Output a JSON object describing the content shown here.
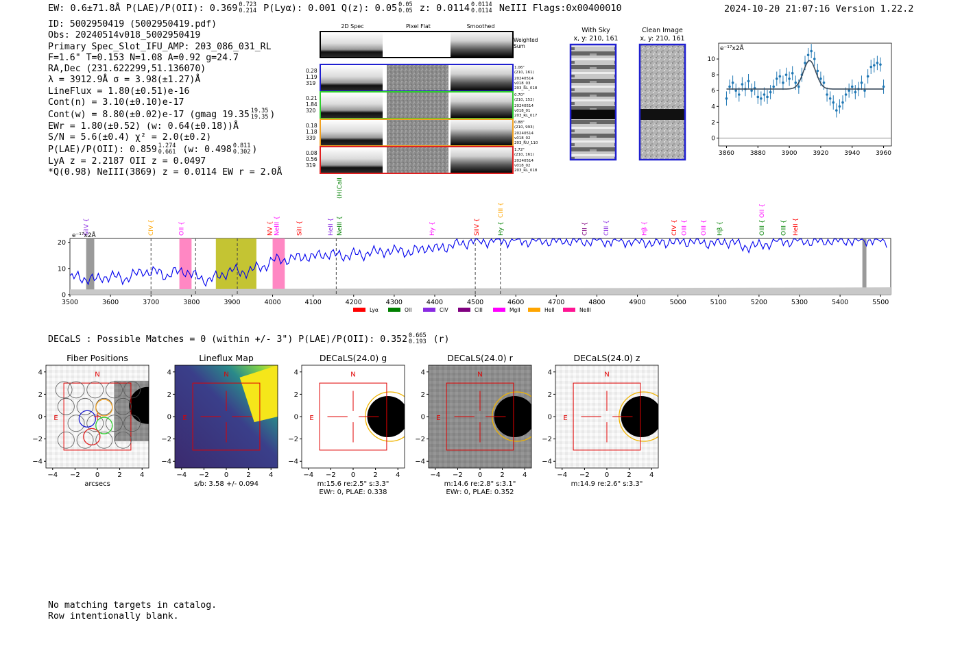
{
  "header": {
    "left": "EW: 0.6±71.8Å  P(LAE)/P(OII): 0.369",
    "plae_hi": "0.723",
    "plae_lo": "0.214",
    "plya": "P(Lyα): 0.001",
    "qz": "Q(z): 0.05",
    "qz_hi": "0.05",
    "qz_lo": "0.05",
    "z": "z: 0.0114",
    "z_hi": "0.0114",
    "z_lo": "0.0114",
    "tail": "NeIII  Flags:0x00400010",
    "datetime": "2024-10-20 21:07:16  Version 1.22.2"
  },
  "info": {
    "id": "ID: 5002950419 (5002950419.pdf)",
    "obs": "Obs: 20240514v018_5002950419",
    "primary": "Primary Spec_Slot_IFU_AMP: 203_086_031_RL",
    "fiber": "F=1.6\"  T=0.153  N=1.08  A=0.92  g=24.7",
    "radec": "RA,Dec (231.622299,51.136070)",
    "lambda": "λ = 3912.9Å  σ = 3.98(±1.27)Å",
    "lineflux": "LineFlux = 1.80(±0.51)e-16",
    "contn": "Cont(n) = 3.10(±0.10)e-17",
    "contw": "Cont(w) = 8.80(±0.02)e-17 (gmag 19.35",
    "contw_hi": "19.35",
    "contw_lo": "19.35",
    "contw_close": ")",
    "ewr": "EWr = 1.80(±0.52) (w: 0.64(±0.18))Å",
    "sn": "S/N = 5.6(±0.4)  χ² = 2.0(±0.2)",
    "plae": "P(LAE)/P(OII): 0.859",
    "plae_hi": "1.274",
    "plae_lo": "0.661",
    "plae_w": "(w: 0.498",
    "plae_w_hi": "0.811",
    "plae_w_lo": "0.302",
    "plae_close": ")",
    "lya": "LyA z = 2.2187  OII z = 0.0497",
    "q": "*Q(0.98) NeIII(3869) z = 0.0114  EW r = 2.0Å"
  },
  "cutouts": {
    "col_titles": [
      "2D Spec",
      "Pixel Flat",
      "Smoothed"
    ],
    "weighted_label": [
      "Weighted",
      "Sum"
    ],
    "rows": [
      {
        "left": [
          "0.28",
          "1.19",
          "319"
        ],
        "right": [
          "1.06\"",
          "(210, 161)",
          "20240514",
          "v018_03",
          "203_RL_018"
        ],
        "color": "#1f1fd0"
      },
      {
        "left": [
          "0.21",
          "1.84",
          "320"
        ],
        "right": [
          "0.70\"",
          "(210, 152)",
          "20240514",
          "v018_01",
          "203_RL_017"
        ],
        "color": "#2ecc2e"
      },
      {
        "left": [
          "0.18",
          "1.18",
          "339"
        ],
        "right": [
          "0.88\"",
          "(210, 993)",
          "20240514",
          "v018_02",
          "203_RU_110"
        ],
        "color": "#f0a020"
      },
      {
        "left": [
          "0.08",
          "0.56",
          "319"
        ],
        "right": [
          "1.72\"",
          "(210, 161)",
          "20240514",
          "v018_02",
          "203_RL_018"
        ],
        "color": "#e02020"
      }
    ],
    "sky_title": [
      "With Sky",
      "x, y: 210, 161"
    ],
    "clean_title": [
      "Clean Image",
      "x, y: 210, 161"
    ]
  },
  "zoom_chart": {
    "unit": "e⁻¹⁷x2Å"
  },
  "spectrum_unit": "e⁻¹⁷x2Å",
  "legend": [
    {
      "name": "Lyα",
      "color": "#ff0000"
    },
    {
      "name": "OII",
      "color": "#008000"
    },
    {
      "name": "CIV",
      "color": "#8a2be2"
    },
    {
      "name": "CIII",
      "color": "#800080"
    },
    {
      "name": "MgII",
      "color": "#ff00ff"
    },
    {
      "name": "HeII",
      "color": "#ffa500"
    },
    {
      "name": "NeIII",
      "color": "#ff1493"
    }
  ],
  "line_labels": [
    {
      "text": "SiIV",
      "w": 3540,
      "color": "#8a2be2",
      "row": 0
    },
    {
      "text": "CIV",
      "w": 3700,
      "color": "#ffa500",
      "row": 0
    },
    {
      "text": "OII",
      "w": 3775,
      "color": "#ff00ff",
      "row": 0
    },
    {
      "text": "NV",
      "w": 3993,
      "color": "#ff0000",
      "row": 0
    },
    {
      "text": "NeIII",
      "w": 4010,
      "color": "#ff00ff",
      "row": 0
    },
    {
      "text": "SiII",
      "w": 4066,
      "color": "#ff0000",
      "row": 0
    },
    {
      "text": "HeII",
      "w": 4143,
      "color": "#8a2be2",
      "row": 0
    },
    {
      "text": "NeIII",
      "w": 4165,
      "color": "#008000",
      "row": 0
    },
    {
      "text": "(H)CaII",
      "w": 4165,
      "color": "#008000",
      "row": 2
    },
    {
      "text": "Hy",
      "w": 4393,
      "color": "#ff00ff",
      "row": 0
    },
    {
      "text": "SiIV",
      "w": 4503,
      "color": "#ff0000",
      "row": 0
    },
    {
      "text": "Hy",
      "w": 4562,
      "color": "#008000",
      "row": 0
    },
    {
      "text": "CIII",
      "w": 4562,
      "color": "#ffa500",
      "row": 1
    },
    {
      "text": "CII",
      "w": 4770,
      "color": "#800080",
      "row": 0
    },
    {
      "text": "CIII",
      "w": 4823,
      "color": "#8a2be2",
      "row": 0
    },
    {
      "text": "Hβ",
      "w": 4917,
      "color": "#ff00ff",
      "row": 0
    },
    {
      "text": "CIV",
      "w": 4990,
      "color": "#ff0000",
      "row": 0
    },
    {
      "text": "OIII",
      "w": 5015,
      "color": "#ff00ff",
      "row": 0
    },
    {
      "text": "OIII",
      "w": 5063,
      "color": "#ff00ff",
      "row": 0
    },
    {
      "text": "Hβ",
      "w": 5103,
      "color": "#008000",
      "row": 0
    },
    {
      "text": "OIII",
      "w": 5207,
      "color": "#008000",
      "row": 0
    },
    {
      "text": "OII",
      "w": 5207,
      "color": "#ff00ff",
      "row": 1
    },
    {
      "text": "OIII",
      "w": 5260,
      "color": "#008000",
      "row": 0
    },
    {
      "text": "HeII",
      "w": 5290,
      "color": "#ff0000",
      "row": 0
    }
  ],
  "decals": {
    "text": "DECaLS : Possible Matches = 0 (within +/- 3\")  P(LAE)/P(OII): 0.352",
    "hi": "0.665",
    "lo": "0.193",
    "tail": "(r)",
    "panels": [
      {
        "title": "Fiber Positions",
        "caption": [
          "arcsecs"
        ]
      },
      {
        "title": "Lineflux Map",
        "caption": [
          "s/b: 3.58 +/- 0.094"
        ]
      },
      {
        "title": "DECaLS(24.0) g",
        "caption": [
          "m:15.6  re:2.5\"  s:3.3\"",
          "EWr: 0, PLAE: 0.338"
        ]
      },
      {
        "title": "DECaLS(24.0) r",
        "caption": [
          "m:14.6  re:2.8\"  s:3.1\"",
          "EWr: 0, PLAE: 0.352"
        ]
      },
      {
        "title": "DECaLS(24.0) z",
        "caption": [
          "m:14.9  re:2.6\"  s:3.3\""
        ]
      }
    ],
    "compass_n": "N",
    "compass_e": "E"
  },
  "footer": [
    "No matching targets in catalog.",
    "Row intentionally blank."
  ],
  "chart_data": [
    {
      "type": "line",
      "title": "",
      "xlabel": "",
      "ylabel": "e⁻¹⁷x2Å",
      "xlim": [
        3855,
        3965
      ],
      "ylim": [
        -1,
        12
      ],
      "xticks": [
        3860,
        3880,
        3900,
        3920,
        3940,
        3960
      ],
      "yticks": [
        0,
        2,
        4,
        6,
        8,
        10
      ],
      "series": [
        {
          "kind": "errorbar",
          "x": [
            3860,
            3862,
            3864,
            3866,
            3868,
            3870,
            3872,
            3874,
            3876,
            3878,
            3880,
            3882,
            3884,
            3886,
            3888,
            3890,
            3892,
            3894,
            3896,
            3898,
            3900,
            3902,
            3904,
            3906,
            3908,
            3910,
            3912,
            3914,
            3916,
            3918,
            3920,
            3922,
            3924,
            3926,
            3928,
            3930,
            3932,
            3934,
            3936,
            3938,
            3940,
            3942,
            3944,
            3946,
            3948,
            3950,
            3952,
            3954,
            3956,
            3958,
            3960
          ],
          "y": [
            5.0,
            6.5,
            7.0,
            6.0,
            5.5,
            6.8,
            6.2,
            7.2,
            6.0,
            6.3,
            5.2,
            5.0,
            5.5,
            5.2,
            5.8,
            6.5,
            7.5,
            7.8,
            7.0,
            8.0,
            7.5,
            8.2,
            7.0,
            6.5,
            8.0,
            9.5,
            10.5,
            11.0,
            10.0,
            8.5,
            7.5,
            7.0,
            5.5,
            5.0,
            4.5,
            3.5,
            4.0,
            4.5,
            5.5,
            6.0,
            6.5,
            5.8,
            6.2,
            7.0,
            6.0,
            7.8,
            9.0,
            9.2,
            9.5,
            9.3,
            6.5
          ],
          "err": 0.9
        },
        {
          "kind": "fit",
          "model": "gaussian",
          "continuum": 6.2,
          "center": 3912.9,
          "sigma": 3.98,
          "amplitude": 3.6
        }
      ]
    },
    {
      "type": "line",
      "title": "",
      "xlabel": "",
      "ylabel": "e⁻¹⁷x2Å",
      "xlim": [
        3500,
        5525
      ],
      "ylim": [
        0,
        21.5
      ],
      "xticks": [
        3500,
        3600,
        3700,
        3800,
        3900,
        4000,
        4100,
        4200,
        4300,
        4400,
        4500,
        4600,
        4700,
        4800,
        4900,
        5000,
        5100,
        5200,
        5300,
        5400,
        5500
      ],
      "yticks": [
        0,
        10,
        20
      ],
      "series": [
        {
          "name": "spectrum",
          "x": [
            3500,
            3520,
            3540,
            3560,
            3580,
            3600,
            3620,
            3640,
            3660,
            3680,
            3700,
            3720,
            3740,
            3760,
            3780,
            3800,
            3820,
            3840,
            3860,
            3880,
            3900,
            3920,
            3940,
            3960,
            3980,
            4000,
            4020,
            4040,
            4060,
            4080,
            4100,
            4120,
            4140,
            4160,
            4180,
            4200,
            4220,
            4240,
            4260,
            4280,
            4300,
            4320,
            4340,
            4360,
            4380,
            4400,
            4420,
            4440,
            4460,
            4480,
            4500,
            4520,
            4540,
            4560,
            4580,
            4600,
            4620,
            4640,
            4660,
            4680,
            4700,
            4720,
            4740,
            4760,
            4780,
            4800,
            4820,
            4840,
            4860,
            4880,
            4900,
            4920,
            4940,
            4960,
            4980,
            5000,
            5020,
            5040,
            5060,
            5080,
            5100,
            5120,
            5140,
            5160,
            5180,
            5200,
            5220,
            5240,
            5260,
            5280,
            5300,
            5320,
            5340,
            5360,
            5380,
            5400,
            5420,
            5440,
            5460,
            5480,
            5500,
            5520
          ],
          "y": [
            6,
            7,
            6,
            5.5,
            7,
            6.5,
            7,
            6,
            7.5,
            9.5,
            8,
            9,
            7,
            8.5,
            9.5,
            7.5,
            6.5,
            5.5,
            6.5,
            8,
            9.5,
            8.5,
            9,
            10,
            11,
            13,
            13.5,
            13.5,
            14,
            15,
            14,
            15.5,
            15.5,
            15,
            15,
            15.5,
            15,
            16.5,
            16,
            17,
            16.5,
            17,
            16,
            17,
            18.5,
            17,
            18.5,
            18.5,
            19.5,
            20,
            20.5,
            20.5,
            20.5,
            21,
            20.5,
            21,
            20.5,
            20.5,
            21,
            20.5,
            20.5,
            21,
            20.5,
            20.5,
            20.5,
            21,
            20.5,
            20.5,
            20.5,
            20.5,
            20,
            20.5,
            19.5,
            20,
            20.5,
            20,
            20.5,
            20.5,
            20,
            20,
            19.5,
            20.5,
            20,
            18,
            19,
            18.5,
            19.5,
            20.5,
            20.5,
            20.5,
            21,
            20.5,
            20.5,
            20.5,
            21,
            20.5,
            21,
            20.5,
            21,
            21,
            20.5,
            20.5
          ]
        },
        {
          "name": "noise",
          "x": [
            3500,
            4000,
            4500,
            5000,
            5525
          ],
          "y": [
            2.0,
            2.2,
            2.4,
            2.6,
            2.8
          ]
        }
      ],
      "shaded_regions": [
        {
          "x0": 3770,
          "x1": 3800,
          "color": "#ff69b4"
        },
        {
          "x0": 3860,
          "x1": 3960,
          "color": "#b5b500"
        },
        {
          "x0": 4000,
          "x1": 4030,
          "color": "#ff69b4"
        },
        {
          "x0": 3540,
          "x1": 3560,
          "color": "#888888"
        },
        {
          "x0": 5455,
          "x1": 5465,
          "color": "#888888"
        }
      ],
      "dashed_lines": [
        3700,
        3810,
        3912.9,
        4157,
        4500,
        4562
      ]
    }
  ]
}
